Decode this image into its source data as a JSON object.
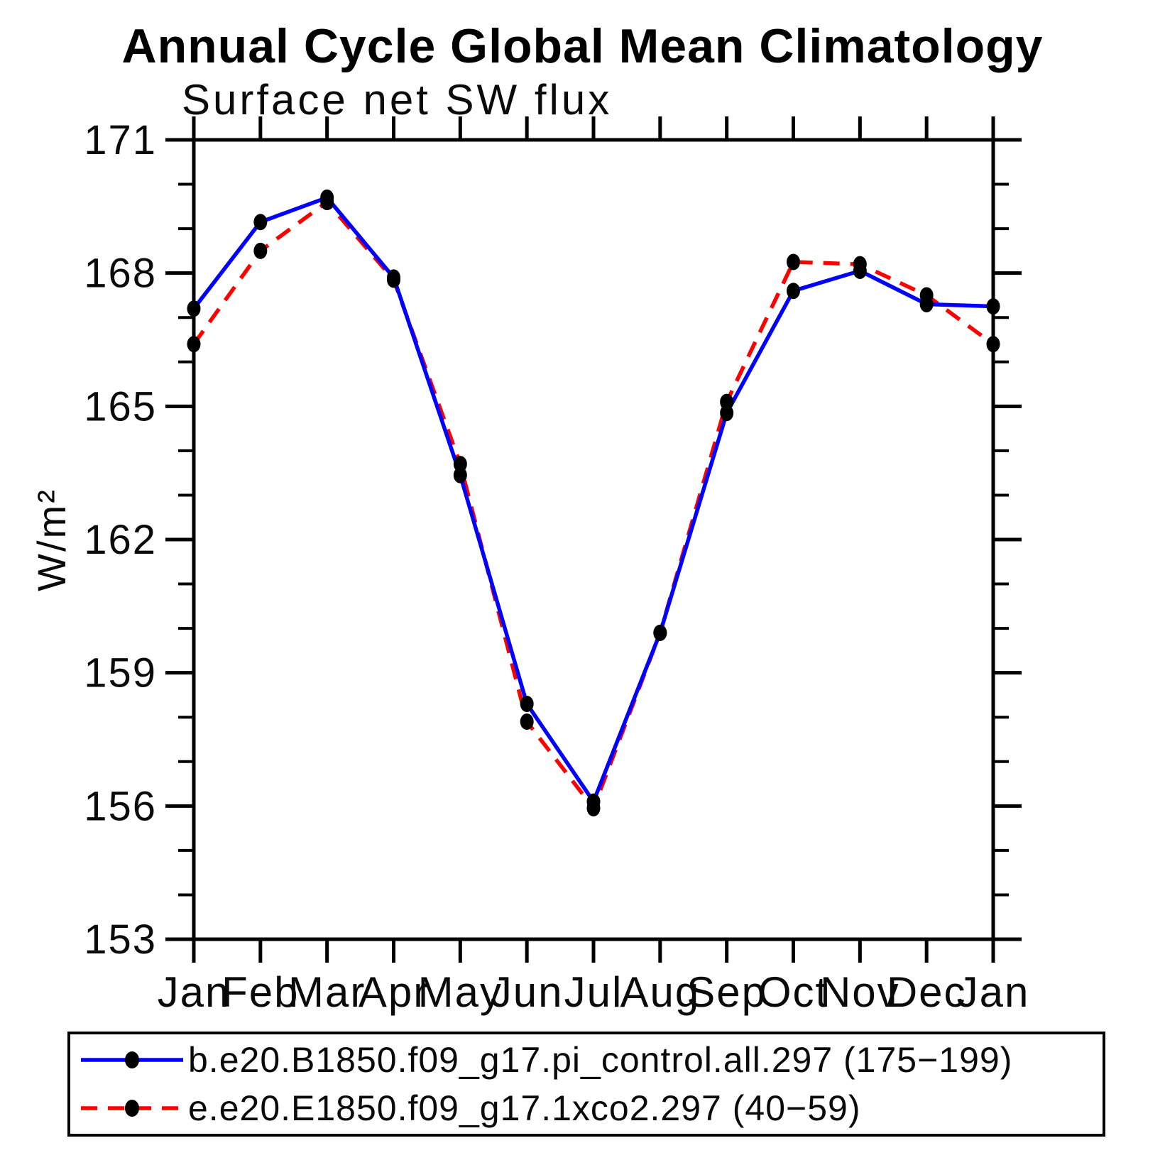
{
  "title": "Annual Cycle Global Mean Climatology",
  "chart_data": {
    "type": "line",
    "title": "Annual Cycle Global Mean Climatology",
    "subtitle": "Surface net SW flux",
    "xlabel": "",
    "ylabel": "W/m²",
    "categories": [
      "Jan",
      "Feb",
      "Mar",
      "Apr",
      "May",
      "Jun",
      "Jul",
      "Aug",
      "Sep",
      "Oct",
      "Nov",
      "Dec",
      "Jan"
    ],
    "ylim": [
      153,
      171
    ],
    "yticks_major": [
      153,
      156,
      159,
      162,
      165,
      168,
      171
    ],
    "ytick_minor_step": 1,
    "grid": false,
    "legend_position": "bottom",
    "series": [
      {
        "name": "b.e20.B1850.f09_g17.pi_control.all.297 (175−199)",
        "color": "#0000ff",
        "line_style": "solid",
        "marker": "filled-circle",
        "marker_color": "#000000",
        "values": [
          167.2,
          169.15,
          169.7,
          167.9,
          163.45,
          158.3,
          156.1,
          159.9,
          164.85,
          167.6,
          168.05,
          167.3,
          167.25
        ]
      },
      {
        "name": "e.e20.E1850.f09_g17.1xco2.297 (40−59)",
        "color": "#ff0000",
        "line_style": "dashed",
        "marker": "filled-circle",
        "marker_color": "#000000",
        "values": [
          166.4,
          168.5,
          169.6,
          167.85,
          163.7,
          157.9,
          155.95,
          159.9,
          165.1,
          168.25,
          168.2,
          167.5,
          166.4
        ]
      }
    ]
  },
  "colors": {
    "background": "#ffffff",
    "axis": "#000000",
    "series_blue": "#0000ff",
    "series_red": "#ff0000",
    "marker": "#000000"
  }
}
